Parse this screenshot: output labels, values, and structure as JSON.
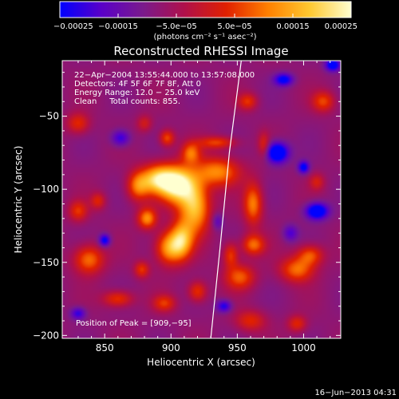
{
  "chart_data": {
    "type": "heatmap",
    "title": "Reconstructed RHESSI Image",
    "xlabel": "Heliocentric X (arcsec)",
    "ylabel": "Heliocentric Y (arcsec)",
    "xlim": [
      818,
      1028
    ],
    "ylim": [
      -202,
      -12
    ],
    "x_ticks": [
      850,
      900,
      950,
      1000
    ],
    "y_ticks": [
      -50,
      -100,
      -150,
      -200
    ],
    "x_tick_labels": [
      "850",
      "900",
      "950",
      "1000"
    ],
    "y_tick_labels": [
      "−50",
      "−100",
      "−150",
      "−200"
    ],
    "colorbar": {
      "range": [
        -0.00025,
        0.00025
      ],
      "ticks": [
        -0.00025,
        -0.00015,
        -5e-05,
        5e-05,
        0.00015,
        0.00025
      ],
      "tick_labels": [
        "−0.00025",
        "−0.00015",
        "−5.0e−05",
        "5.0e−05",
        "0.00015",
        "0.00025"
      ],
      "unit_label": "(photons cm⁻² s⁻¹ asec⁻²)",
      "colors": [
        "#0000ff",
        "#5a00c8",
        "#7a1a8c",
        "#b0104a",
        "#e02000",
        "#ff8000",
        "#ffc830",
        "#ffffd0"
      ]
    },
    "annotations": [
      "22−Apr−2004 13:55:44.000 to 13:57:08.000",
      "Detectors: 4F 5F 6F 7F 8F, Att 0",
      "Energy Range: 12.0 − 25.0 keV",
      "Clean     Total counts: 855."
    ],
    "peak_label": "Position of Peak = [909,−95]",
    "limb_curve": [
      [
        953,
        -12
      ],
      [
        944,
        -75
      ],
      [
        937,
        -140
      ],
      [
        930,
        -202
      ]
    ],
    "blobs": [
      {
        "x": 905,
        "y": -97,
        "sx": 9,
        "sy": 9,
        "amp": 1.0
      },
      {
        "x": 890,
        "y": -93,
        "sx": 9,
        "sy": 7,
        "amp": 0.82
      },
      {
        "x": 918,
        "y": -112,
        "sx": 8,
        "sy": 13,
        "amp": 0.82
      },
      {
        "x": 908,
        "y": -135,
        "sx": 6,
        "sy": 9,
        "amp": 0.72
      },
      {
        "x": 882,
        "y": -120,
        "sx": 5,
        "sy": 5,
        "amp": 0.65
      },
      {
        "x": 898,
        "y": -140,
        "sx": 7,
        "sy": 8,
        "amp": 0.68
      },
      {
        "x": 935,
        "y": -88,
        "sx": 12,
        "sy": 7,
        "amp": 0.62
      },
      {
        "x": 875,
        "y": -98,
        "sx": 6,
        "sy": 7,
        "amp": 0.55
      },
      {
        "x": 915,
        "y": -75,
        "sx": 5,
        "sy": 5,
        "amp": 0.5
      },
      {
        "x": 897,
        "y": -65,
        "sx": 4,
        "sy": 4,
        "amp": 0.5
      },
      {
        "x": 935,
        "y": -68,
        "sx": 10,
        "sy": 3,
        "amp": 0.45
      },
      {
        "x": 962,
        "y": -110,
        "sx": 5,
        "sy": 10,
        "amp": 0.6
      },
      {
        "x": 962,
        "y": -138,
        "sx": 6,
        "sy": 5,
        "amp": 0.55
      },
      {
        "x": 952,
        "y": -160,
        "sx": 8,
        "sy": 6,
        "amp": 0.5
      },
      {
        "x": 945,
        "y": -145,
        "sx": 4,
        "sy": 6,
        "amp": 0.45
      },
      {
        "x": 995,
        "y": -155,
        "sx": 9,
        "sy": 6,
        "amp": 0.55
      },
      {
        "x": 1005,
        "y": -145,
        "sx": 7,
        "sy": 5,
        "amp": 0.5
      },
      {
        "x": 1015,
        "y": -40,
        "sx": 6,
        "sy": 5,
        "amp": 0.45
      },
      {
        "x": 958,
        "y": -40,
        "sx": 5,
        "sy": 4,
        "amp": 0.4
      },
      {
        "x": 970,
        "y": -70,
        "sx": 3,
        "sy": 6,
        "amp": 0.35
      },
      {
        "x": 838,
        "y": -148,
        "sx": 8,
        "sy": 7,
        "amp": 0.58
      },
      {
        "x": 830,
        "y": -115,
        "sx": 5,
        "sy": 5,
        "amp": 0.4
      },
      {
        "x": 845,
        "y": -108,
        "sx": 4,
        "sy": 4,
        "amp": 0.35
      },
      {
        "x": 830,
        "y": -55,
        "sx": 6,
        "sy": 5,
        "amp": 0.4
      },
      {
        "x": 860,
        "y": -175,
        "sx": 8,
        "sy": 4,
        "amp": 0.45
      },
      {
        "x": 895,
        "y": -178,
        "sx": 6,
        "sy": 4,
        "amp": 0.4
      },
      {
        "x": 920,
        "y": -170,
        "sx": 5,
        "sy": 5,
        "amp": 0.45
      },
      {
        "x": 960,
        "y": -190,
        "sx": 8,
        "sy": 5,
        "amp": 0.38
      },
      {
        "x": 878,
        "y": -155,
        "sx": 4,
        "sy": 4,
        "amp": 0.42
      },
      {
        "x": 995,
        "y": -192,
        "sx": 5,
        "sy": 4,
        "amp": 0.38
      },
      {
        "x": 1010,
        "y": -95,
        "sx": 4,
        "sy": 4,
        "amp": 0.3
      },
      {
        "x": 880,
        "y": -55,
        "sx": 4,
        "sy": 4,
        "amp": 0.3
      },
      {
        "x": 980,
        "y": -75,
        "sx": 6,
        "sy": 5,
        "amp": -0.85
      },
      {
        "x": 1010,
        "y": -115,
        "sx": 6,
        "sy": 4,
        "amp": -0.8
      },
      {
        "x": 1000,
        "y": -85,
        "sx": 3,
        "sy": 3,
        "amp": -0.6
      },
      {
        "x": 985,
        "y": -25,
        "sx": 5,
        "sy": 3,
        "amp": -0.6
      },
      {
        "x": 1022,
        "y": -15,
        "sx": 4,
        "sy": 3,
        "amp": -0.7
      },
      {
        "x": 850,
        "y": -135,
        "sx": 3,
        "sy": 3,
        "amp": -0.6
      },
      {
        "x": 862,
        "y": -65,
        "sx": 5,
        "sy": 4,
        "amp": -0.45
      },
      {
        "x": 940,
        "y": -180,
        "sx": 4,
        "sy": 3,
        "amp": -0.5
      },
      {
        "x": 830,
        "y": -185,
        "sx": 4,
        "sy": 3,
        "amp": -0.45
      },
      {
        "x": 990,
        "y": -130,
        "sx": 4,
        "sy": 4,
        "amp": -0.35
      },
      {
        "x": 935,
        "y": -122,
        "sx": 3,
        "sy": 4,
        "amp": -0.3
      }
    ]
  },
  "footer": {
    "timestamp": "16−Jun−2013 04:31"
  }
}
